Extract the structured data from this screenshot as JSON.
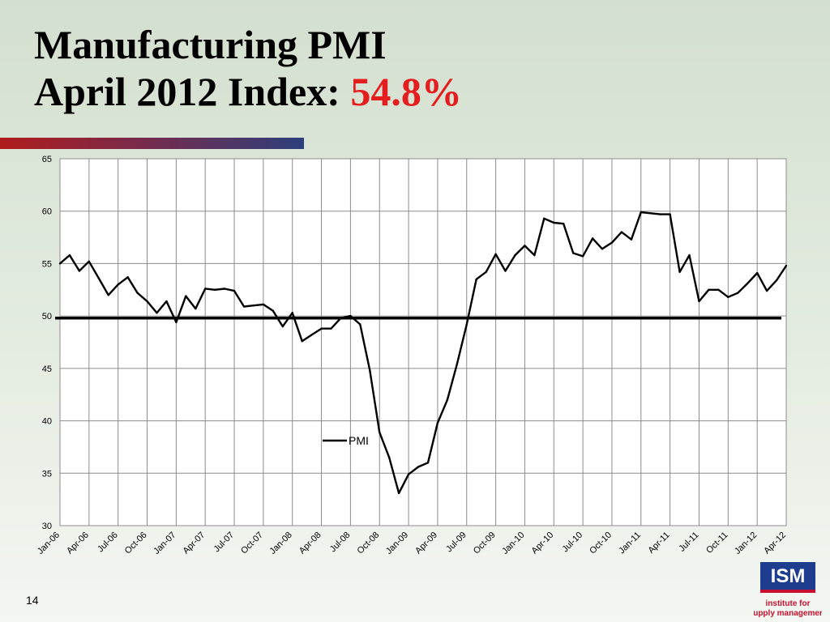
{
  "slide": {
    "title_line1": "Manufacturing PMI",
    "title_line2_prefix": "April 2012 Index: ",
    "title_line2_value": "54.8%",
    "page_number": "14",
    "logo_text": "ISM",
    "logo_caption_1": "institute for",
    "logo_caption_2": "supply management",
    "accent_color": "#e41e1e"
  },
  "chart_data": {
    "type": "line",
    "title": "",
    "xlabel": "",
    "ylabel": "",
    "ylim": [
      30,
      65
    ],
    "yticks": [
      30,
      35,
      40,
      45,
      50,
      55,
      60,
      65
    ],
    "grid": true,
    "x": [
      "Jan-06",
      "Feb-06",
      "Mar-06",
      "Apr-06",
      "May-06",
      "Jun-06",
      "Jul-06",
      "Aug-06",
      "Sep-06",
      "Oct-06",
      "Nov-06",
      "Dec-06",
      "Jan-07",
      "Feb-07",
      "Mar-07",
      "Apr-07",
      "May-07",
      "Jun-07",
      "Jul-07",
      "Aug-07",
      "Sep-07",
      "Oct-07",
      "Nov-07",
      "Dec-07",
      "Jan-08",
      "Feb-08",
      "Mar-08",
      "Apr-08",
      "May-08",
      "Jun-08",
      "Jul-08",
      "Aug-08",
      "Sep-08",
      "Oct-08",
      "Nov-08",
      "Dec-08",
      "Jan-09",
      "Feb-09",
      "Mar-09",
      "Apr-09",
      "May-09",
      "Jun-09",
      "Jul-09",
      "Aug-09",
      "Sep-09",
      "Oct-09",
      "Nov-09",
      "Dec-09",
      "Jan-10",
      "Feb-10",
      "Mar-10",
      "Apr-10",
      "May-10",
      "Jun-10",
      "Jul-10",
      "Aug-10",
      "Sep-10",
      "Oct-10",
      "Nov-10",
      "Dec-10",
      "Jan-11",
      "Feb-11",
      "Mar-11",
      "Apr-11",
      "May-11",
      "Jun-11",
      "Jul-11",
      "Aug-11",
      "Sep-11",
      "Oct-11",
      "Nov-11",
      "Dec-11",
      "Jan-12",
      "Feb-12",
      "Mar-12",
      "Apr-12"
    ],
    "tick_labels": [
      "Jan-06",
      "Apr-06",
      "Jul-06",
      "Oct-06",
      "Jan-07",
      "Apr-07",
      "Jul-07",
      "Oct-07",
      "Jan-08",
      "Apr-08",
      "Jul-08",
      "Oct-08",
      "Jan-09",
      "Apr-09",
      "Jul-09",
      "Oct-09",
      "Jan-10",
      "Apr-10",
      "Jul-10",
      "Oct-10",
      "Jan-11",
      "Apr-11",
      "Jul-11",
      "Oct-11",
      "Jan-12",
      "Apr-12"
    ],
    "series": [
      {
        "name": "PMI",
        "color": "#000000",
        "values": [
          55.0,
          55.8,
          54.3,
          55.2,
          53.6,
          52.0,
          53.0,
          53.7,
          52.2,
          51.4,
          50.3,
          51.4,
          49.4,
          51.9,
          50.7,
          52.6,
          52.5,
          52.6,
          52.4,
          50.9,
          51.0,
          51.1,
          50.5,
          49.0,
          50.3,
          47.6,
          48.2,
          48.8,
          48.8,
          49.8,
          50.0,
          49.2,
          44.8,
          38.9,
          36.5,
          33.1,
          34.9,
          35.6,
          36.0,
          39.8,
          42.0,
          45.4,
          49.2,
          53.5,
          54.2,
          55.9,
          54.3,
          55.8,
          56.7,
          55.8,
          59.3,
          58.9,
          58.8,
          56.0,
          55.7,
          57.4,
          56.4,
          57.0,
          58.0,
          57.3,
          59.9,
          59.8,
          59.7,
          59.7,
          54.2,
          55.8,
          51.4,
          52.5,
          52.5,
          51.8,
          52.2,
          53.1,
          54.1,
          52.4,
          53.4,
          54.8
        ]
      }
    ],
    "reference_line": {
      "value": 49.8,
      "color": "#000000"
    }
  }
}
